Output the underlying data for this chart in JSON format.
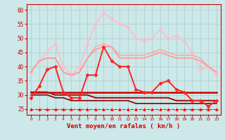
{
  "xlabel": "Vent moyen/en rafales ( km/h )",
  "xlim": [
    -0.5,
    23.5
  ],
  "ylim": [
    23,
    62
  ],
  "yticks": [
    25,
    30,
    35,
    40,
    45,
    50,
    55,
    60
  ],
  "xticks": [
    0,
    1,
    2,
    3,
    4,
    5,
    6,
    7,
    8,
    9,
    10,
    11,
    12,
    13,
    14,
    15,
    16,
    17,
    18,
    19,
    20,
    21,
    22,
    23
  ],
  "bg_color": "#cce8e8",
  "grid_color": "#aacccc",
  "series": [
    {
      "y": [
        38,
        42,
        45,
        48,
        40,
        37,
        40,
        48,
        55,
        59,
        57,
        55,
        54,
        50,
        49,
        50,
        53,
        50,
        51,
        49,
        45,
        39,
        40,
        37
      ],
      "color": "#ffbbcc",
      "lw": 1.2,
      "marker": "D",
      "ms": 2.5,
      "zorder": 2
    },
    {
      "y": [
        38,
        42,
        43,
        43,
        38,
        37,
        38,
        43,
        47,
        48,
        47,
        44,
        44,
        44,
        44,
        45,
        46,
        45,
        44,
        44,
        44,
        43,
        40,
        38
      ],
      "color": "#ffaaaa",
      "lw": 1.2,
      "marker": null,
      "ms": 0,
      "zorder": 2
    },
    {
      "y": [
        38,
        42,
        43,
        43,
        38,
        37,
        38,
        43,
        46,
        47,
        47,
        43,
        43,
        43,
        43,
        44,
        45,
        44,
        43,
        43,
        43,
        42,
        40,
        38
      ],
      "color": "#ff9999",
      "lw": 1.2,
      "marker": null,
      "ms": 0,
      "zorder": 2
    },
    {
      "y": [
        29,
        33,
        39,
        40,
        31,
        29,
        29,
        37,
        37,
        47,
        42,
        40,
        40,
        32,
        31,
        31,
        34,
        35,
        32,
        31,
        28,
        28,
        26,
        28
      ],
      "color": "#ff2222",
      "lw": 1.4,
      "marker": "D",
      "ms": 2.5,
      "zorder": 5
    },
    {
      "y": [
        31,
        31,
        31,
        31,
        31,
        31,
        31,
        31,
        31,
        31,
        31,
        31,
        31,
        31,
        31,
        31,
        31,
        31,
        31,
        31,
        31,
        31,
        31,
        31
      ],
      "color": "#cc0000",
      "lw": 1.8,
      "marker": null,
      "ms": 0,
      "zorder": 4
    },
    {
      "y": [
        31,
        31,
        31,
        30,
        30,
        30,
        30,
        30,
        29,
        29,
        29,
        29,
        29,
        29,
        29,
        29,
        29,
        29,
        28,
        28,
        28,
        28,
        28,
        28
      ],
      "color": "#aa0000",
      "lw": 1.4,
      "marker": null,
      "ms": 0,
      "zorder": 3
    },
    {
      "y": [
        30,
        30,
        30,
        29,
        29,
        28,
        28,
        28,
        28,
        28,
        28,
        28,
        28,
        27,
        27,
        27,
        27,
        27,
        27,
        27,
        27,
        27,
        27,
        27
      ],
      "color": "#880000",
      "lw": 1.2,
      "marker": null,
      "ms": 0,
      "zorder": 3
    },
    {
      "y": [
        25,
        25,
        25,
        25,
        25,
        25,
        25,
        25,
        25,
        25,
        25,
        25,
        25,
        25,
        25,
        25,
        25,
        25,
        25,
        25,
        25,
        25,
        25,
        25
      ],
      "color": "#ff0000",
      "lw": 0.8,
      "marker": "^",
      "ms": 2.5,
      "zorder": 6,
      "ls": "--"
    }
  ]
}
